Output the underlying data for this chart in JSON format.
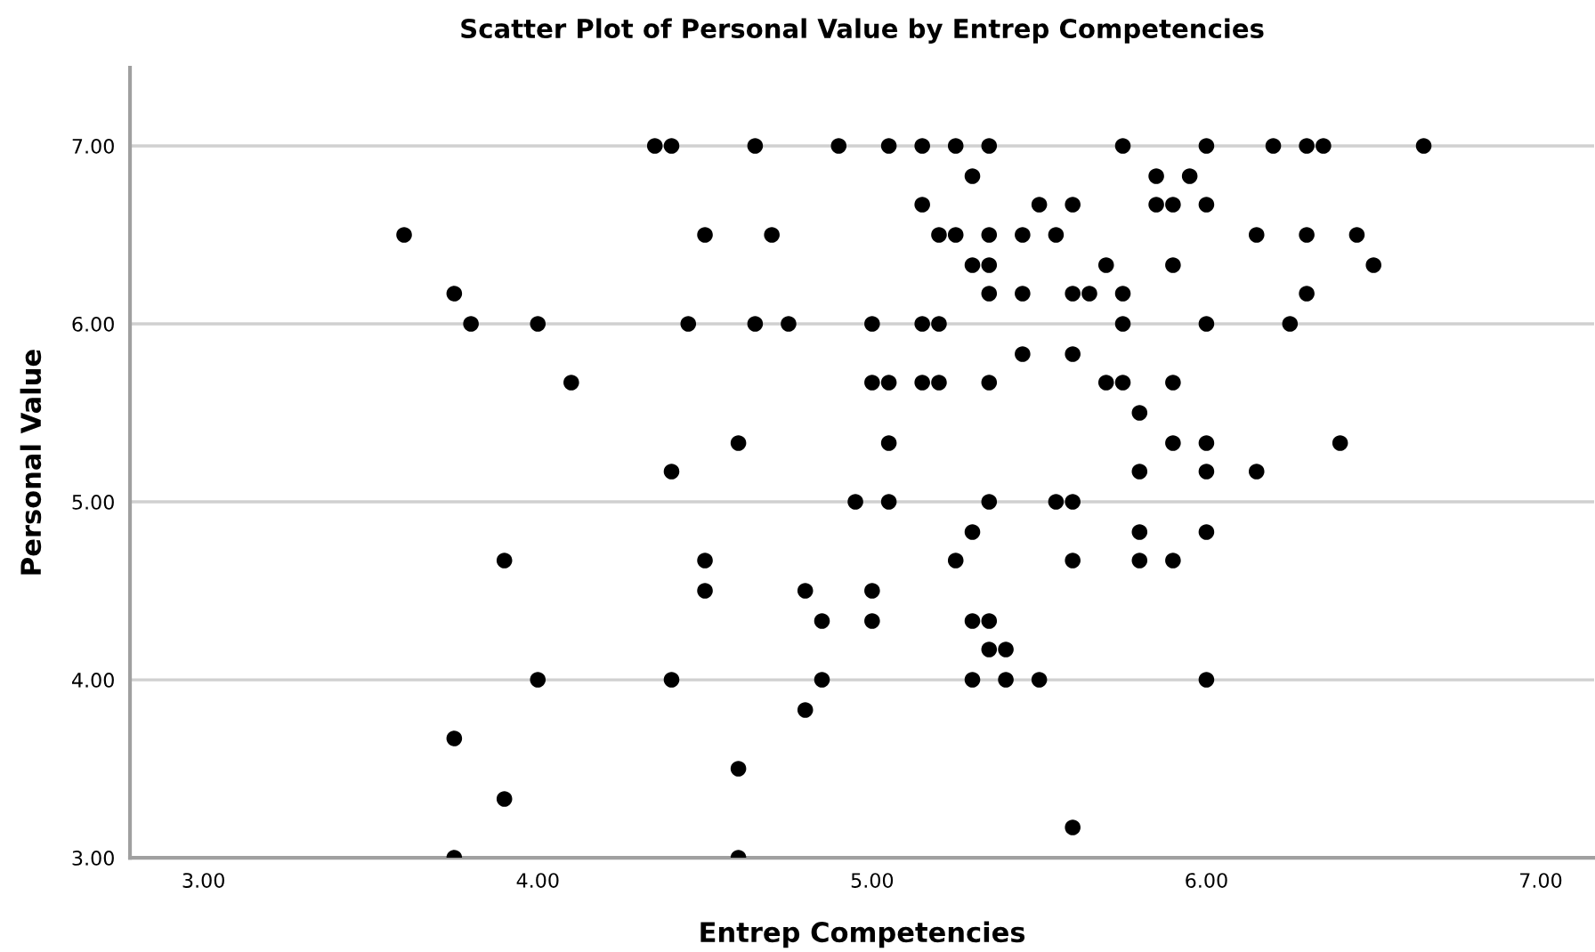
{
  "chart_data": {
    "type": "scatter",
    "title": "Scatter Plot of Personal Value by Entrep Competencies",
    "xlabel": "Entrep Competencies",
    "ylabel": "Personal Value",
    "xlim": [
      2.78,
      7.16
    ],
    "ylim": [
      3.0,
      7.44
    ],
    "xticks": [
      {
        "value": 3,
        "label": "3.00"
      },
      {
        "value": 4,
        "label": "4.00"
      },
      {
        "value": 5,
        "label": "5.00"
      },
      {
        "value": 6,
        "label": "6.00"
      },
      {
        "value": 7,
        "label": "7.00"
      }
    ],
    "yticks": [
      {
        "value": 3,
        "label": "3.00"
      },
      {
        "value": 4,
        "label": "4.00"
      },
      {
        "value": 5,
        "label": "5.00"
      },
      {
        "value": 6,
        "label": "6.00"
      },
      {
        "value": 7,
        "label": "7.00"
      }
    ],
    "grid": "y",
    "marker": "circle",
    "series": [
      {
        "color": "#000000",
        "x": [
          4.35,
          4.4,
          4.65,
          4.9,
          5.05,
          5.15,
          5.25,
          5.35,
          5.75,
          6.0,
          6.2,
          6.3,
          6.35,
          6.65,
          5.3,
          5.85,
          5.95,
          5.15,
          5.5,
          5.6,
          5.85,
          5.9,
          6.0,
          3.6,
          4.5,
          4.7,
          5.2,
          5.25,
          5.35,
          5.45,
          5.55,
          6.15,
          6.3,
          6.45,
          5.3,
          5.35,
          5.7,
          5.9,
          6.5,
          3.75,
          5.35,
          5.45,
          5.6,
          5.65,
          5.75,
          6.3,
          3.8,
          4.0,
          4.45,
          4.65,
          4.75,
          5.0,
          5.15,
          5.2,
          5.75,
          6.0,
          6.25,
          5.45,
          5.6,
          4.1,
          5.0,
          5.05,
          5.15,
          5.2,
          5.35,
          5.7,
          5.75,
          5.9,
          5.8,
          4.6,
          5.05,
          5.9,
          6.0,
          6.4,
          4.4,
          5.8,
          6.0,
          6.15,
          4.95,
          5.05,
          5.35,
          5.55,
          5.6,
          5.3,
          5.8,
          6.0,
          3.9,
          4.5,
          5.25,
          5.6,
          5.8,
          5.9,
          4.5,
          4.8,
          5.0,
          4.85,
          5.0,
          5.3,
          5.35,
          5.35,
          5.4,
          4.0,
          4.4,
          4.85,
          5.3,
          5.4,
          5.5,
          6.0,
          4.8,
          3.75,
          4.6,
          3.9,
          5.6,
          3.75,
          4.6
        ],
        "values": [
          7,
          7,
          7,
          7,
          7,
          7,
          7,
          7,
          7,
          7,
          7,
          7,
          7,
          7,
          6.83,
          6.83,
          6.83,
          6.67,
          6.67,
          6.67,
          6.67,
          6.67,
          6.67,
          6.5,
          6.5,
          6.5,
          6.5,
          6.5,
          6.5,
          6.5,
          6.5,
          6.5,
          6.5,
          6.5,
          6.33,
          6.33,
          6.33,
          6.33,
          6.33,
          6.17,
          6.17,
          6.17,
          6.17,
          6.17,
          6.17,
          6.17,
          6,
          6,
          6,
          6,
          6,
          6,
          6,
          6,
          6,
          6,
          6,
          5.83,
          5.83,
          5.67,
          5.67,
          5.67,
          5.67,
          5.67,
          5.67,
          5.67,
          5.67,
          5.67,
          5.5,
          5.33,
          5.33,
          5.33,
          5.33,
          5.33,
          5.17,
          5.17,
          5.17,
          5.17,
          5,
          5,
          5,
          5,
          5,
          4.83,
          4.83,
          4.83,
          4.67,
          4.67,
          4.67,
          4.67,
          4.67,
          4.67,
          4.5,
          4.5,
          4.5,
          4.33,
          4.33,
          4.33,
          4.33,
          4.17,
          4.17,
          4,
          4,
          4,
          4,
          4,
          4,
          4,
          3.83,
          3.67,
          3.5,
          3.33,
          3.17,
          3,
          3
        ]
      }
    ]
  }
}
